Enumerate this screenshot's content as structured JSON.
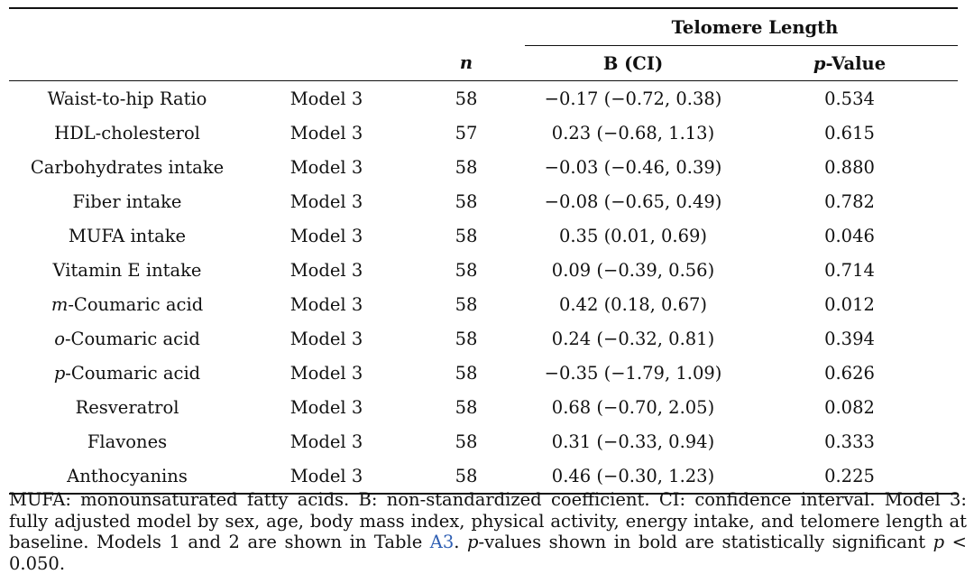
{
  "table": {
    "group_header": "Telomere Length",
    "col_n": "n",
    "col_b": "B (CI)",
    "col_p_prefix": "p",
    "col_p_suffix": "-Value",
    "rows": [
      {
        "var_prefix": "",
        "var_rest": "Waist-to-hip Ratio",
        "model": "Model 3",
        "n": "58",
        "b": "−0.17 (−0.72, 0.38)",
        "p": "0.534",
        "sig": false
      },
      {
        "var_prefix": "",
        "var_rest": "HDL-cholesterol",
        "model": "Model 3",
        "n": "57",
        "b": "0.23 (−0.68, 1.13)",
        "p": "0.615",
        "sig": false
      },
      {
        "var_prefix": "",
        "var_rest": "Carbohydrates intake",
        "model": "Model 3",
        "n": "58",
        "b": "−0.03 (−0.46, 0.39)",
        "p": "0.880",
        "sig": false
      },
      {
        "var_prefix": "",
        "var_rest": "Fiber intake",
        "model": "Model 3",
        "n": "58",
        "b": "−0.08 (−0.65, 0.49)",
        "p": "0.782",
        "sig": false
      },
      {
        "var_prefix": "",
        "var_rest": "MUFA intake",
        "model": "Model 3",
        "n": "58",
        "b": "0.35 (0.01, 0.69)",
        "p": "0.046",
        "sig": true
      },
      {
        "var_prefix": "",
        "var_rest": "Vitamin E intake",
        "model": "Model 3",
        "n": "58",
        "b": "0.09 (−0.39, 0.56)",
        "p": "0.714",
        "sig": false
      },
      {
        "var_prefix": "m",
        "var_rest": "-Coumaric acid",
        "model": "Model 3",
        "n": "58",
        "b": "0.42 (0.18, 0.67)",
        "p": "0.012",
        "sig": true
      },
      {
        "var_prefix": "o",
        "var_rest": "-Coumaric acid",
        "model": "Model 3",
        "n": "58",
        "b": "0.24 (−0.32, 0.81)",
        "p": "0.394",
        "sig": false
      },
      {
        "var_prefix": "p",
        "var_rest": "-Coumaric acid",
        "model": "Model 3",
        "n": "58",
        "b": "−0.35 (−1.79, 1.09)",
        "p": "0.626",
        "sig": false
      },
      {
        "var_prefix": "",
        "var_rest": "Resveratrol",
        "model": "Model 3",
        "n": "58",
        "b": "0.68 (−0.70, 2.05)",
        "p": "0.082",
        "sig": false
      },
      {
        "var_prefix": "",
        "var_rest": "Flavones",
        "model": "Model 3",
        "n": "58",
        "b": "0.31 (−0.33, 0.94)",
        "p": "0.333",
        "sig": false
      },
      {
        "var_prefix": "",
        "var_rest": "Anthocyanins",
        "model": "Model 3",
        "n": "58",
        "b": "0.46 (−0.30, 1.23)",
        "p": "0.225",
        "sig": false
      }
    ]
  },
  "footnote": {
    "part1": "MUFA: monounsaturated fatty acids. B: non-standardized coefficient. CI: confidence interval. Model 3: fully adjusted model by sex, age, body mass index, physical activity, energy intake, and telomere length at baseline. Models 1 and 2 are shown in Table ",
    "link": "A3",
    "part2": ". ",
    "p_italic": "p",
    "part3": "-values shown in bold are statistically significant ",
    "p2_italic": "p",
    "part4": " < 0.050."
  },
  "colors": {
    "link": "#2f5fb3",
    "text": "#111111"
  }
}
